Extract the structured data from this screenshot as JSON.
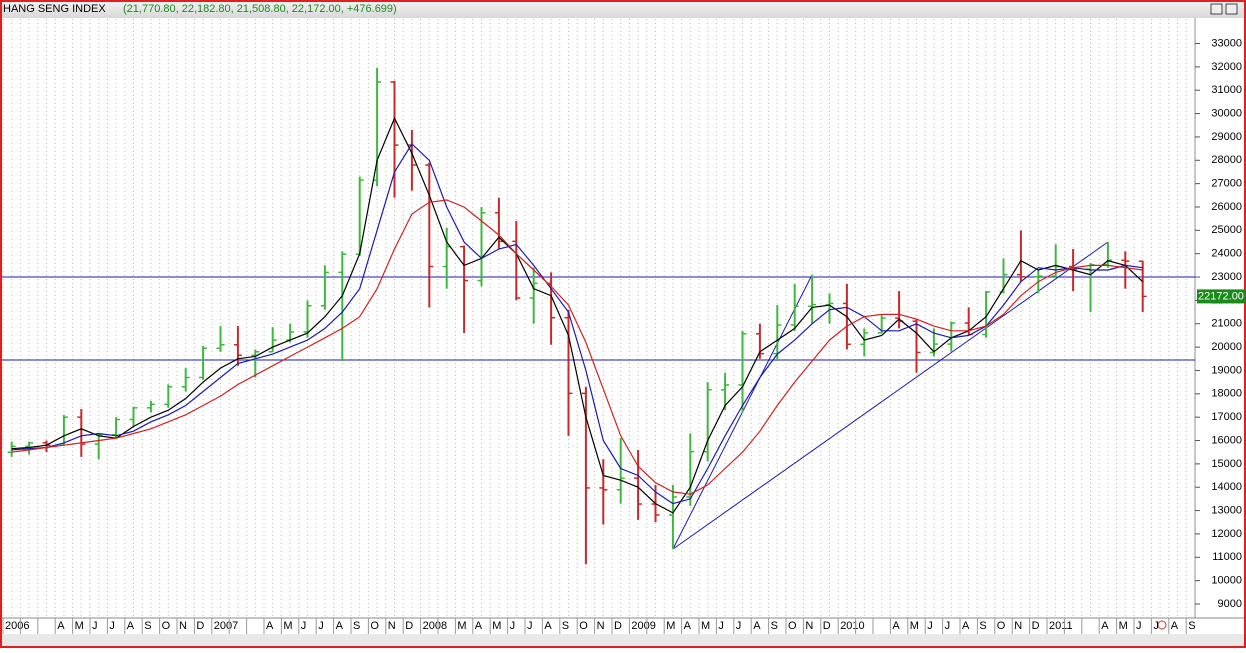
{
  "chart_data": {
    "type": "ohlc",
    "title": "HANG SENG INDEX",
    "subtitle": "(21,770.80, 22,182.80, 21,508.80, 22,172.00, +476.699)",
    "categories": [
      "2006",
      null,
      null,
      "A",
      "M",
      "J",
      "J",
      "A",
      "S",
      "O",
      "N",
      "D",
      "2007",
      null,
      null,
      "A",
      "M",
      "J",
      "J",
      "A",
      "S",
      "O",
      "N",
      "D",
      "2008",
      null,
      "M",
      "A",
      "M",
      "J",
      "J",
      "A",
      "S",
      "O",
      "N",
      "D",
      "2009",
      null,
      "M",
      "A",
      "M",
      "J",
      "J",
      "A",
      "S",
      "O",
      "N",
      "D",
      "2010",
      null,
      null,
      "A",
      "M",
      "J",
      "J",
      "A",
      "S",
      "O",
      "N",
      "D",
      "2011",
      null,
      null,
      "A",
      "M",
      "J",
      "J",
      "A",
      "S"
    ],
    "open": [
      15500,
      15750,
      15900,
      15800,
      17000,
      15850,
      16250,
      16900,
      17400,
      17550,
      18300,
      18700,
      19950,
      20100,
      19650,
      19800,
      20300,
      20650,
      21770,
      23200,
      23980,
      27150,
      31350,
      28650,
      27800,
      23450,
      24300,
      22850,
      25750,
      24530,
      22100,
      22730,
      21260,
      18020,
      13970,
      13890,
      14390,
      13280,
      12810,
      13580,
      15520,
      18170,
      18380,
      20570,
      19720,
      20950,
      21750,
      21820,
      21870,
      20120,
      20610,
      21240,
      21110,
      19770,
      20130,
      21030,
      20540,
      22360,
      23100,
      23010,
      23040,
      23450,
      23340,
      23530,
      23720,
      23680,
      null,
      null,
      null
    ],
    "high": [
      15950,
      15950,
      16000,
      17100,
      17350,
      16300,
      17000,
      17450,
      17700,
      18400,
      19100,
      20050,
      20900,
      20900,
      19900,
      20850,
      21000,
      22000,
      23500,
      24100,
      27300,
      31950,
      31400,
      29300,
      27900,
      25100,
      24350,
      26000,
      26400,
      25400,
      23400,
      23200,
      21600,
      18300,
      15200,
      16100,
      15600,
      14100,
      14100,
      16300,
      18500,
      18900,
      20700,
      21000,
      21800,
      22700,
      23100,
      22300,
      22700,
      20800,
      21400,
      22400,
      21200,
      20800,
      21100,
      21700,
      22400,
      23800,
      25000,
      23300,
      24400,
      24200,
      23600,
      24500,
      24100,
      23700,
      null,
      null,
      null
    ],
    "low": [
      15300,
      15400,
      15500,
      15800,
      15300,
      15200,
      16100,
      16600,
      17200,
      17400,
      18100,
      18600,
      19800,
      19200,
      18700,
      19800,
      20200,
      20400,
      21600,
      19400,
      23900,
      26900,
      26400,
      26700,
      21700,
      22500,
      20600,
      22600,
      24200,
      22000,
      21000,
      20100,
      16200,
      10700,
      12400,
      13300,
      12600,
      12500,
      11350,
      13200,
      15100,
      17300,
      17200,
      19500,
      19400,
      20700,
      21000,
      21000,
      19900,
      19600,
      20600,
      20800,
      18900,
      19600,
      19800,
      20500,
      20400,
      22300,
      22800,
      22300,
      23000,
      22400,
      21500,
      23400,
      22500,
      21500,
      null,
      null,
      null
    ],
    "close": [
      15750,
      15900,
      15800,
      17000,
      15850,
      16250,
      16900,
      17400,
      17550,
      18300,
      18700,
      19950,
      20100,
      19650,
      19800,
      20300,
      20650,
      21770,
      23200,
      23980,
      27150,
      31350,
      28650,
      27800,
      23450,
      24300,
      22850,
      25750,
      24530,
      22100,
      22730,
      21260,
      18020,
      13970,
      13890,
      14390,
      13280,
      12810,
      13580,
      15520,
      18170,
      18380,
      20570,
      19720,
      20950,
      21750,
      21820,
      21870,
      20120,
      20610,
      21240,
      21110,
      19770,
      20130,
      21030,
      20540,
      22360,
      23100,
      23010,
      23040,
      23450,
      23340,
      23530,
      23720,
      23680,
      22172,
      null,
      null,
      null
    ],
    "up_color": "#3cb83c",
    "down_color": "#c82828",
    "series": [
      {
        "color": "#000000",
        "values": [
          15650,
          15700,
          15800,
          16200,
          16500,
          16200,
          16100,
          16600,
          17000,
          17300,
          17800,
          18500,
          19100,
          19500,
          19600,
          20000,
          20300,
          20600,
          21300,
          22200,
          24000,
          28000,
          29800,
          28300,
          26500,
          24500,
          23500,
          23800,
          24700,
          24000,
          22500,
          22200,
          20500,
          17000,
          14500,
          14300,
          14000,
          13300,
          12900,
          14000,
          16000,
          17500,
          18300,
          19800,
          20300,
          20800,
          21700,
          21800,
          21300,
          20300,
          20500,
          21200,
          20600,
          19800,
          20400,
          20700,
          21300,
          22500,
          23700,
          23300,
          23500,
          23300,
          23100,
          23700,
          23500,
          22800,
          null,
          null,
          null
        ]
      },
      {
        "color": "#1a1ab4",
        "values": [
          15600,
          15650,
          15700,
          15900,
          16200,
          16300,
          16200,
          16400,
          16800,
          17100,
          17500,
          18100,
          18700,
          19300,
          19500,
          19700,
          20000,
          20300,
          20800,
          21500,
          22500,
          25000,
          27500,
          28700,
          28000,
          26000,
          24500,
          23800,
          24200,
          24400,
          23500,
          22500,
          21500,
          19000,
          16000,
          14800,
          14500,
          13800,
          13300,
          13500,
          14800,
          16200,
          17500,
          18700,
          19700,
          20300,
          21000,
          21600,
          21700,
          21300,
          20700,
          20700,
          21000,
          20600,
          20400,
          20500,
          20900,
          21800,
          22800,
          23400,
          23300,
          23400,
          23300,
          23300,
          23500,
          23400,
          null,
          null,
          null
        ]
      },
      {
        "color": "#d42020",
        "values": [
          15500,
          15600,
          15700,
          15800,
          15900,
          16000,
          16100,
          16300,
          16500,
          16800,
          17100,
          17500,
          17900,
          18400,
          18800,
          19200,
          19600,
          20000,
          20400,
          20800,
          21300,
          22500,
          24200,
          25700,
          26200,
          26300,
          26000,
          25400,
          24800,
          24000,
          23300,
          22600,
          21800,
          20200,
          18200,
          16200,
          14900,
          14200,
          13800,
          13700,
          14100,
          14800,
          15500,
          16400,
          17500,
          18500,
          19400,
          20300,
          20900,
          21300,
          21400,
          21400,
          21200,
          20900,
          20700,
          20700,
          20900,
          21400,
          22200,
          22800,
          23200,
          23400,
          23500,
          23500,
          23400,
          23300,
          null,
          null,
          null
        ]
      }
    ],
    "hlines": [
      23000,
      19450
    ],
    "hline_color": "#1a1ab4",
    "trendlines": [
      {
        "x": [
          38,
          46
        ],
        "y": [
          11350,
          23100
        ]
      },
      {
        "x": [
          38,
          63
        ],
        "y": [
          11350,
          24500
        ]
      }
    ],
    "last_value": {
      "value": 22172,
      "label": "22172.00"
    },
    "ylim": [
      8400,
      34050
    ],
    "yticks": [
      9000,
      10000,
      11000,
      12000,
      13000,
      14000,
      15000,
      16000,
      17000,
      18000,
      19000,
      20000,
      21000,
      22000,
      23000,
      24000,
      25000,
      26000,
      27000,
      28000,
      29000,
      30000,
      31000,
      32000,
      33000
    ]
  }
}
